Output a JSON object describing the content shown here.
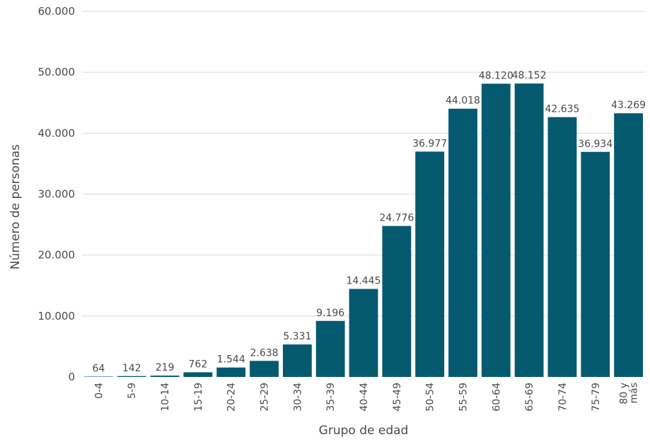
{
  "chart_data": {
    "type": "bar",
    "title": "",
    "xlabel": "Grupo de edad",
    "ylabel": "Número de personas",
    "ylim": [
      0,
      60000
    ],
    "yticks": [
      0,
      10000,
      20000,
      30000,
      40000,
      50000,
      60000
    ],
    "ytick_labels": [
      "0",
      "10.000",
      "20.000",
      "30.000",
      "40.000",
      "50.000",
      "60.000"
    ],
    "grid": true,
    "bar_color": "#055a70",
    "categories": [
      [
        "0-4"
      ],
      [
        "5-9"
      ],
      [
        "10-14"
      ],
      [
        "15-19"
      ],
      [
        "20-24"
      ],
      [
        "25-29"
      ],
      [
        "30-34"
      ],
      [
        "35-39"
      ],
      [
        "40-44"
      ],
      [
        "45-49"
      ],
      [
        "50-54"
      ],
      [
        "55-59"
      ],
      [
        "60-64"
      ],
      [
        "65-69"
      ],
      [
        "70-74"
      ],
      [
        "75-79"
      ],
      [
        "80 y",
        "más"
      ]
    ],
    "values": [
      64,
      142,
      219,
      762,
      1544,
      2638,
      5331,
      9196,
      14445,
      24776,
      36977,
      44018,
      48120,
      48152,
      42635,
      36934,
      43269
    ],
    "data_labels": [
      "64",
      "142",
      "219",
      "762",
      "1.544",
      "2.638",
      "5.331",
      "9.196",
      "14.445",
      "24.776",
      "36.977",
      "44.018",
      "48.120",
      "48.152",
      "42.635",
      "36.934",
      "43.269"
    ]
  }
}
